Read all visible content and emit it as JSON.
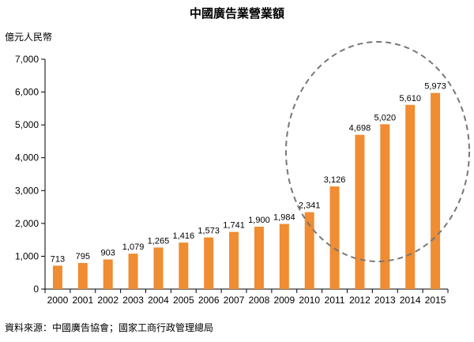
{
  "chart_data": {
    "type": "bar",
    "title": "中國廣告業營業額",
    "ylabel": "億元人民幣",
    "xlabel": "",
    "categories": [
      "2000",
      "2001",
      "2002",
      "2003",
      "2004",
      "2005",
      "2006",
      "2007",
      "2008",
      "2009",
      "2010",
      "2011",
      "2012",
      "2013",
      "2014",
      "2015"
    ],
    "values": [
      713,
      795,
      903,
      1079,
      1265,
      1416,
      1573,
      1741,
      1900,
      1984,
      2341,
      3126,
      4698,
      5020,
      5610,
      5973
    ],
    "value_labels": [
      "713",
      "795",
      "903",
      "1,079",
      "1,265",
      "1,416",
      "1,573",
      "1,741",
      "1,900",
      "1,984",
      "2,341",
      "3,126",
      "4,698",
      "5,020",
      "5,610",
      "5,973"
    ],
    "ylim": [
      0,
      7000
    ],
    "yticks": [
      0,
      1000,
      2000,
      3000,
      4000,
      5000,
      6000,
      7000
    ],
    "ytick_labels": [
      "0",
      "1,000",
      "2,000",
      "3,000",
      "4,000",
      "5,000",
      "6,000",
      "7,000"
    ],
    "grid": false,
    "bar_color": "#F08C32",
    "highlight_ellipse_color": "#777777",
    "source_note": "資料來源：中國廣告協會；國家工商行政管理總局"
  }
}
